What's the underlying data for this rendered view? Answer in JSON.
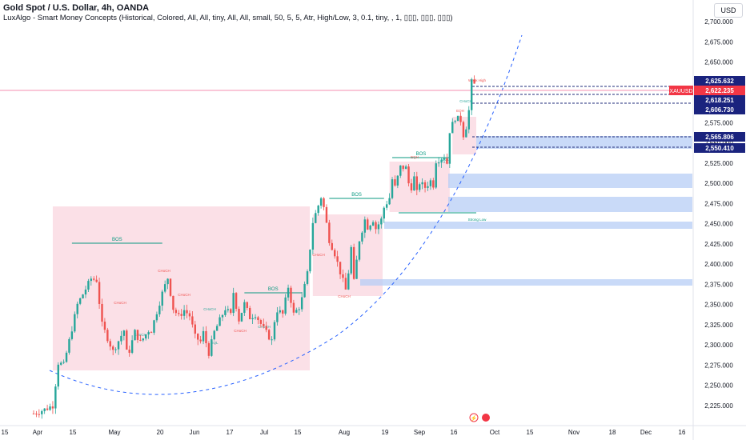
{
  "header": {
    "title": "Gold Spot / U.S. Dollar, 4h, OANDA",
    "indicator": "LuxAlgo - Smart Money Concepts (Historical, Colored, All, All, tiny, All, All, small, 50, 5, 5, Atr, High/Low, 3, 0.1, tiny, , 1, ▯▯▯, ▯▯▯, ▯▯▯)",
    "currency": "USD"
  },
  "colors": {
    "up": "#26a69a",
    "down": "#ef5350",
    "bos": "#089981",
    "zone_pink": "#f7c6d3",
    "zone_blue": "#b7cdf5",
    "curve": "#2962ff"
  },
  "chart_data": {
    "type": "candlestick",
    "symbol": "XAUUSD",
    "ylim": [
      2212,
      2712
    ],
    "y_ticks": [
      "2,225.000",
      "2,250.000",
      "2,275.000",
      "2,300.000",
      "2,325.000",
      "2,350.000",
      "2,375.000",
      "2,400.000",
      "2,425.000",
      "2,450.000",
      "2,475.000",
      "2,500.000",
      "2,525.000",
      "2,550.000",
      "2,575.000",
      "2,600.000",
      "2,625.000",
      "2,650.000",
      "2,675.000",
      "2,700.000"
    ],
    "x_ticks": [
      "15",
      "Apr",
      "15",
      "May",
      "20",
      "Jun",
      "17",
      "Jul",
      "15",
      "Aug",
      "19",
      "Sep",
      "16",
      "Oct",
      "15",
      "Nov",
      "18",
      "Dec",
      "16"
    ],
    "price_path": [
      [
        0,
        2215
      ],
      [
        4,
        2220
      ],
      [
        7,
        2225
      ],
      [
        9,
        2278
      ],
      [
        11,
        2275
      ],
      [
        16,
        2350
      ],
      [
        21,
        2382
      ],
      [
        23,
        2380
      ],
      [
        25,
        2325
      ],
      [
        29,
        2292
      ],
      [
        33,
        2318
      ],
      [
        34,
        2291
      ],
      [
        35,
        2293
      ],
      [
        37,
        2316
      ],
      [
        39,
        2303
      ],
      [
        42,
        2318
      ],
      [
        43,
        2318
      ],
      [
        47,
        2364
      ],
      [
        49,
        2383
      ],
      [
        51,
        2345
      ],
      [
        53,
        2335
      ],
      [
        55,
        2343
      ],
      [
        57,
        2336
      ],
      [
        59,
        2310
      ],
      [
        61,
        2304
      ],
      [
        62,
        2315
      ],
      [
        64,
        2290
      ],
      [
        66,
        2316
      ],
      [
        70,
        2345
      ],
      [
        72,
        2337
      ],
      [
        73,
        2365
      ],
      [
        75,
        2331
      ],
      [
        77,
        2351
      ],
      [
        79,
        2334
      ],
      [
        81,
        2338
      ],
      [
        84,
        2320
      ],
      [
        87,
        2305
      ],
      [
        88,
        2330
      ],
      [
        89,
        2343
      ],
      [
        91,
        2338
      ],
      [
        93,
        2372
      ],
      [
        95,
        2338
      ],
      [
        97,
        2347
      ],
      [
        98,
        2357
      ],
      [
        100,
        2388
      ],
      [
        102,
        2452
      ],
      [
        105,
        2483
      ],
      [
        106,
        2470
      ],
      [
        108,
        2430
      ],
      [
        110,
        2413
      ],
      [
        112,
        2390
      ],
      [
        114,
        2368
      ],
      [
        115,
        2390
      ],
      [
        116,
        2420
      ],
      [
        117,
        2378
      ],
      [
        119,
        2430
      ],
      [
        121,
        2455
      ],
      [
        122,
        2446
      ],
      [
        124,
        2455
      ],
      [
        125,
        2444
      ],
      [
        127,
        2455
      ],
      [
        128,
        2470
      ],
      [
        130,
        2482
      ],
      [
        131,
        2505
      ],
      [
        132,
        2495
      ],
      [
        134,
        2520
      ],
      [
        136,
        2519
      ],
      [
        137,
        2500
      ],
      [
        138,
        2495
      ],
      [
        139,
        2507
      ],
      [
        140,
        2488
      ],
      [
        141,
        2501
      ],
      [
        143,
        2495
      ],
      [
        145,
        2503
      ],
      [
        146,
        2498
      ],
      [
        147,
        2528
      ],
      [
        150,
        2533
      ],
      [
        151,
        2525
      ],
      [
        152,
        2565
      ],
      [
        154,
        2581
      ],
      [
        156,
        2578
      ],
      [
        157,
        2560
      ],
      [
        158,
        2570
      ],
      [
        159,
        2590
      ],
      [
        160,
        2625
      ],
      [
        161,
        2622
      ]
    ],
    "last_price": {
      "label": "XAUUSD",
      "value": "2,622.235"
    },
    "price_labels": [
      {
        "value": "2,625.632",
        "style": "dark"
      },
      {
        "value": "2,618.251",
        "style": "dark"
      },
      {
        "value": "2,606.730",
        "style": "dark"
      },
      {
        "value": "2,565.806",
        "style": "dark"
      },
      {
        "value": "2,550.410",
        "style": "dark"
      }
    ],
    "bos_labels": [
      "BOS",
      "BOS",
      "BOS",
      "BOS"
    ],
    "annotations": {
      "weak_high": "Weak High",
      "strong_low": "Strong Low",
      "choch": "CHoCH",
      "eqh": "EQH",
      "eql": "EQL"
    },
    "grid": false
  }
}
